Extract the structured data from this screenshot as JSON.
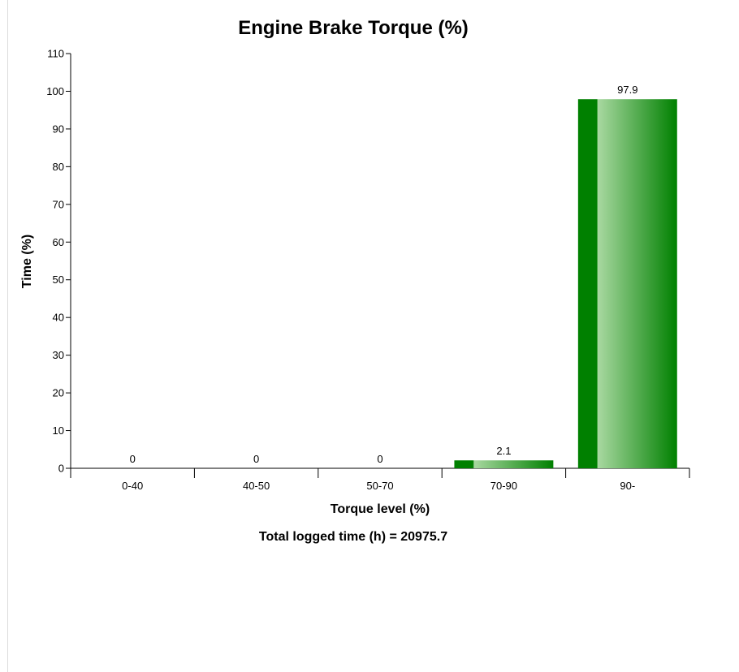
{
  "colors": {
    "bar_dark": "#008000",
    "bar_light": "#a8d8a0",
    "axis": "#000000"
  },
  "chart_data": {
    "type": "bar",
    "title": "Engine Brake Torque (%)",
    "xlabel": "Torque level (%)",
    "ylabel": "Time (%)",
    "categories": [
      "0-40",
      "40-50",
      "50-70",
      "70-90",
      "90-"
    ],
    "values": [
      0,
      0,
      0,
      2.1,
      97.9
    ],
    "value_labels": [
      "0",
      "0",
      "0",
      "2.1",
      "97.9"
    ],
    "ylim": [
      0,
      110
    ],
    "yticks": [
      0,
      10,
      20,
      30,
      40,
      50,
      60,
      70,
      80,
      90,
      100,
      110
    ],
    "grid": false,
    "legend": "none",
    "footer": "Total logged time (h) = 20975.7"
  }
}
